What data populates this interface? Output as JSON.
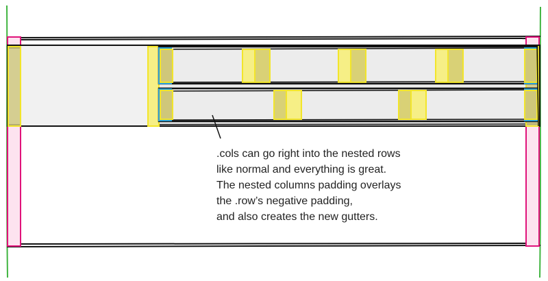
{
  "annotation": {
    "lines": [
      ".cols can go right into the nested rows",
      "like normal and everything is great.",
      "The nested columns padding overlays",
      "the .row’s negative padding,",
      "and also creates the new gutters."
    ]
  },
  "colors": {
    "outline": "#111111",
    "container_padding": "#e0127a",
    "container_padding_fill": "#fde3ef",
    "column_padding": "#f2e52a",
    "column_padding_fill": "#f6ef86",
    "nested_row_padding": "#2a9fd6",
    "row_fill": "#ececec",
    "edge_lines": "#3fb43f"
  }
}
